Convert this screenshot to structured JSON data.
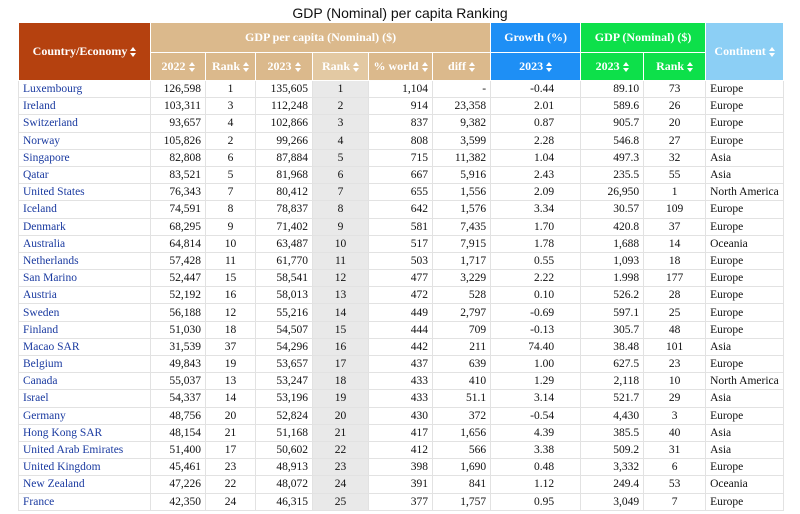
{
  "title": "GDP (Nominal) per capita Ranking",
  "table": {
    "header_groups": [
      "Country/Economy",
      "GDP per capita (Nominal) ($)",
      "Growth (%)",
      "GDP (Nominal) ($)",
      "Continent"
    ],
    "subheaders": [
      "2022",
      "Rank",
      "2023",
      "Rank",
      "% world",
      "diff",
      "2023",
      "2023",
      "Rank"
    ],
    "rows": [
      [
        "Luxembourg",
        "126,598",
        "1",
        "135,605",
        "1",
        "1,104",
        "-",
        "-0.44",
        "89.10",
        "73",
        "Europe"
      ],
      [
        "Ireland",
        "103,311",
        "3",
        "112,248",
        "2",
        "914",
        "23,358",
        "2.01",
        "589.6",
        "26",
        "Europe"
      ],
      [
        "Switzerland",
        "93,657",
        "4",
        "102,866",
        "3",
        "837",
        "9,382",
        "0.87",
        "905.7",
        "20",
        "Europe"
      ],
      [
        "Norway",
        "105,826",
        "2",
        "99,266",
        "4",
        "808",
        "3,599",
        "2.28",
        "546.8",
        "27",
        "Europe"
      ],
      [
        "Singapore",
        "82,808",
        "6",
        "87,884",
        "5",
        "715",
        "11,382",
        "1.04",
        "497.3",
        "32",
        "Asia"
      ],
      [
        "Qatar",
        "83,521",
        "5",
        "81,968",
        "6",
        "667",
        "5,916",
        "2.43",
        "235.5",
        "55",
        "Asia"
      ],
      [
        "United States",
        "76,343",
        "7",
        "80,412",
        "7",
        "655",
        "1,556",
        "2.09",
        "26,950",
        "1",
        "North America"
      ],
      [
        "Iceland",
        "74,591",
        "8",
        "78,837",
        "8",
        "642",
        "1,576",
        "3.34",
        "30.57",
        "109",
        "Europe"
      ],
      [
        "Denmark",
        "68,295",
        "9",
        "71,402",
        "9",
        "581",
        "7,435",
        "1.70",
        "420.8",
        "37",
        "Europe"
      ],
      [
        "Australia",
        "64,814",
        "10",
        "63,487",
        "10",
        "517",
        "7,915",
        "1.78",
        "1,688",
        "14",
        "Oceania"
      ],
      [
        "Netherlands",
        "57,428",
        "11",
        "61,770",
        "11",
        "503",
        "1,717",
        "0.55",
        "1,093",
        "18",
        "Europe"
      ],
      [
        "San Marino",
        "52,447",
        "15",
        "58,541",
        "12",
        "477",
        "3,229",
        "2.22",
        "1.998",
        "177",
        "Europe"
      ],
      [
        "Austria",
        "52,192",
        "16",
        "58,013",
        "13",
        "472",
        "528",
        "0.10",
        "526.2",
        "28",
        "Europe"
      ],
      [
        "Sweden",
        "56,188",
        "12",
        "55,216",
        "14",
        "449",
        "2,797",
        "-0.69",
        "597.1",
        "25",
        "Europe"
      ],
      [
        "Finland",
        "51,030",
        "18",
        "54,507",
        "15",
        "444",
        "709",
        "-0.13",
        "305.7",
        "48",
        "Europe"
      ],
      [
        "Macao SAR",
        "31,539",
        "37",
        "54,296",
        "16",
        "442",
        "211",
        "74.40",
        "38.48",
        "101",
        "Asia"
      ],
      [
        "Belgium",
        "49,843",
        "19",
        "53,657",
        "17",
        "437",
        "639",
        "1.00",
        "627.5",
        "23",
        "Europe"
      ],
      [
        "Canada",
        "55,037",
        "13",
        "53,247",
        "18",
        "433",
        "410",
        "1.29",
        "2,118",
        "10",
        "North America"
      ],
      [
        "Israel",
        "54,337",
        "14",
        "53,196",
        "19",
        "433",
        "51.1",
        "3.14",
        "521.7",
        "29",
        "Asia"
      ],
      [
        "Germany",
        "48,756",
        "20",
        "52,824",
        "20",
        "430",
        "372",
        "-0.54",
        "4,430",
        "3",
        "Europe"
      ],
      [
        "Hong Kong SAR",
        "48,154",
        "21",
        "51,168",
        "21",
        "417",
        "1,656",
        "4.39",
        "385.5",
        "40",
        "Asia"
      ],
      [
        "United Arab Emirates",
        "51,400",
        "17",
        "50,602",
        "22",
        "412",
        "566",
        "3.38",
        "509.2",
        "31",
        "Asia"
      ],
      [
        "United Kingdom",
        "45,461",
        "23",
        "48,913",
        "23",
        "398",
        "1,690",
        "0.48",
        "3,332",
        "6",
        "Europe"
      ],
      [
        "New Zealand",
        "47,226",
        "22",
        "48,072",
        "24",
        "391",
        "841",
        "1.12",
        "249.4",
        "53",
        "Oceania"
      ],
      [
        "France",
        "42,350",
        "24",
        "46,315",
        "25",
        "377",
        "1,757",
        "0.95",
        "3,049",
        "7",
        "Europe"
      ]
    ]
  }
}
